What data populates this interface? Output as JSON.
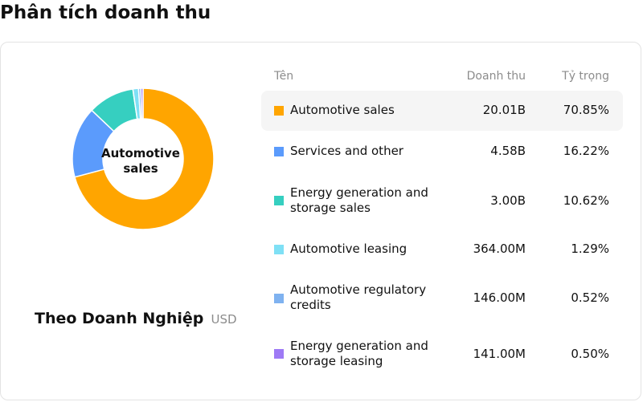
{
  "page": {
    "title": "Phân tích doanh thu"
  },
  "donut": {
    "center_label": "Automotive sales"
  },
  "subtitle": {
    "main": "Theo Doanh Nghiệp",
    "unit": "USD"
  },
  "table": {
    "headers": {
      "name": "Tên",
      "revenue": "Doanh thu",
      "share": "Tỷ trọng"
    },
    "rows": [
      {
        "name": "Automotive sales",
        "revenue": "20.01B",
        "share": "70.85%",
        "color": "#ffa500"
      },
      {
        "name": "Services and other",
        "revenue": "4.58B",
        "share": "16.22%",
        "color": "#5b9bfc"
      },
      {
        "name": "Energy generation and storage sales",
        "revenue": "3.00B",
        "share": "10.62%",
        "color": "#36cfc0"
      },
      {
        "name": "Automotive leasing",
        "revenue": "364.00M",
        "share": "1.29%",
        "color": "#7fe0f5"
      },
      {
        "name": "Automotive regulatory credits",
        "revenue": "146.00M",
        "share": "0.52%",
        "color": "#7fb2f0"
      },
      {
        "name": "Energy generation and storage leasing",
        "revenue": "141.00M",
        "share": "0.50%",
        "color": "#9e7af5"
      }
    ]
  },
  "chart_data": {
    "type": "pie",
    "categories": [
      "Automotive sales",
      "Services and other",
      "Energy generation and storage sales",
      "Automotive leasing",
      "Automotive regulatory credits",
      "Energy generation and storage leasing"
    ],
    "values": [
      70.85,
      16.22,
      10.62,
      1.29,
      0.52,
      0.5
    ],
    "colors": [
      "#ffa500",
      "#5b9bfc",
      "#36cfc0",
      "#7fe0f5",
      "#7fb2f0",
      "#9e7af5"
    ]
  }
}
